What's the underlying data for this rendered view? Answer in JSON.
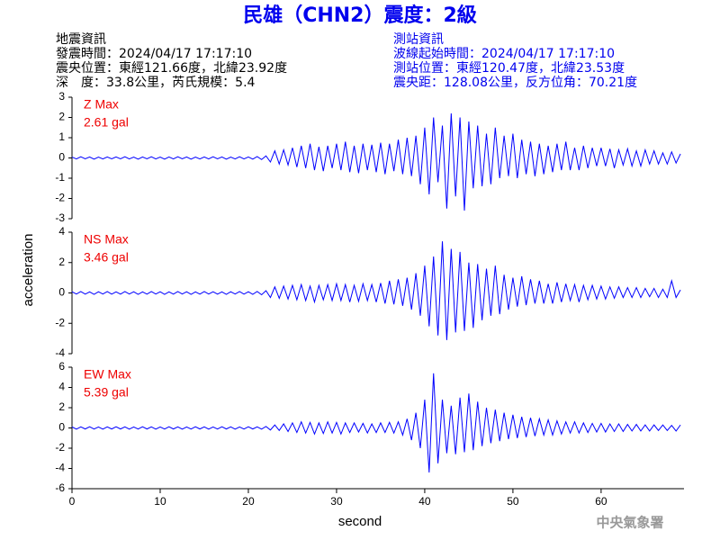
{
  "header": {
    "title": "民雄（CHN2）震度：2級",
    "left": [
      "地震資訊",
      "發震時間：2024/04/17 17:17:10",
      "震央位置：東經121.66度，北緯23.92度",
      "深　度：33.8公里，芮氏規模：5.4"
    ],
    "right": [
      "測站資訊",
      "波線起始時間：2024/04/17 17:17:10",
      "測站位置：東經120.47度，北緯23.53度",
      "震央距：128.08公里，反方位角：70.21度"
    ],
    "footer": "中央氣象署"
  },
  "chart_data": {
    "type": "line",
    "xlabel": "second",
    "ylabel": "acceleration",
    "xlim": [
      0,
      69.4
    ],
    "xticks": [
      0,
      10,
      20,
      30,
      40,
      50,
      60
    ],
    "x": [
      0,
      0.5,
      1,
      1.5,
      2,
      2.5,
      3,
      3.5,
      4,
      4.5,
      5,
      5.5,
      6,
      6.5,
      7,
      7.5,
      8,
      8.5,
      9,
      9.5,
      10,
      10.5,
      11,
      11.5,
      12,
      12.5,
      13,
      13.5,
      14,
      14.5,
      15,
      15.5,
      16,
      16.5,
      17,
      17.5,
      18,
      18.5,
      19,
      19.5,
      20,
      20.5,
      21,
      21.5,
      22,
      22.5,
      23,
      23.5,
      24,
      24.5,
      25,
      25.5,
      26,
      26.5,
      27,
      27.5,
      28,
      28.5,
      29,
      29.5,
      30,
      30.5,
      31,
      31.5,
      32,
      32.5,
      33,
      33.5,
      34,
      34.5,
      35,
      35.5,
      36,
      36.5,
      37,
      37.5,
      38,
      38.5,
      39,
      39.5,
      40,
      40.5,
      41,
      41.5,
      42,
      42.5,
      43,
      43.5,
      44,
      44.5,
      45,
      45.5,
      46,
      46.5,
      47,
      47.5,
      48,
      48.5,
      49,
      49.5,
      50,
      50.5,
      51,
      51.5,
      52,
      52.5,
      53,
      53.5,
      54,
      54.5,
      55,
      55.5,
      56,
      56.5,
      57,
      57.5,
      58,
      58.5,
      59,
      59.5,
      60,
      60.5,
      61,
      61.5,
      62,
      62.5,
      63,
      63.5,
      64,
      64.5,
      65,
      65.5,
      66,
      66.5,
      67,
      67.5,
      68,
      68.5,
      69
    ],
    "panels": [
      {
        "annotations": [
          "Z Max",
          "2.61 gal"
        ],
        "color": "#0000ff",
        "ylim": [
          -3,
          3
        ],
        "yticks": [
          -3,
          -2,
          -1,
          0,
          1,
          2,
          3
        ],
        "values": [
          0.04,
          -0.05,
          0.06,
          -0.04,
          0.05,
          -0.06,
          0.04,
          -0.05,
          0.05,
          -0.04,
          0.05,
          -0.04,
          0.06,
          -0.05,
          0.04,
          -0.06,
          0.05,
          -0.04,
          0.06,
          -0.05,
          0.04,
          -0.06,
          0.05,
          -0.05,
          0.06,
          -0.04,
          0.05,
          -0.06,
          0.04,
          -0.05,
          0.05,
          -0.05,
          0.06,
          -0.04,
          0.05,
          -0.06,
          0.04,
          -0.05,
          0.06,
          -0.05,
          0.05,
          -0.06,
          0.07,
          -0.08,
          0.1,
          -0.2,
          0.35,
          -0.3,
          0.4,
          -0.35,
          0.5,
          -0.45,
          0.6,
          -0.5,
          0.7,
          -0.6,
          0.55,
          -0.65,
          0.6,
          -0.5,
          0.7,
          -0.6,
          0.8,
          -0.7,
          0.6,
          -0.75,
          0.7,
          -0.6,
          0.65,
          -0.7,
          0.75,
          -0.8,
          0.7,
          -0.65,
          0.9,
          -0.8,
          1.0,
          -0.9,
          1.1,
          -1.3,
          1.5,
          -1.8,
          2.0,
          -1.2,
          1.6,
          -2.5,
          2.2,
          -1.9,
          2.0,
          -2.6,
          1.8,
          -1.5,
          1.6,
          -1.4,
          1.2,
          -1.3,
          1.5,
          -1.0,
          1.1,
          -0.9,
          1.2,
          -1.0,
          0.9,
          -0.8,
          0.8,
          -0.9,
          0.7,
          -0.8,
          0.6,
          -0.7,
          0.7,
          -0.6,
          0.8,
          -0.6,
          0.5,
          -0.6,
          0.6,
          -0.5,
          0.5,
          -0.4,
          0.5,
          -0.4,
          0.45,
          -0.5,
          0.4,
          -0.35,
          0.45,
          -0.4,
          0.35,
          -0.4,
          0.4,
          -0.3,
          0.35,
          -0.3,
          0.25,
          -0.3,
          0.3,
          -0.25,
          0.2
        ]
      },
      {
        "annotations": [
          "NS Max",
          "3.46 gal"
        ],
        "color": "#0000ff",
        "ylim": [
          -4,
          4
        ],
        "yticks": [
          -4,
          -2,
          0,
          2,
          4
        ],
        "values": [
          0.08,
          -0.07,
          0.09,
          -0.08,
          0.07,
          -0.09,
          0.08,
          -0.07,
          0.09,
          -0.08,
          0.07,
          -0.08,
          0.09,
          -0.07,
          0.08,
          -0.09,
          0.07,
          -0.08,
          0.09,
          -0.07,
          0.08,
          -0.09,
          0.07,
          -0.08,
          0.09,
          -0.07,
          0.08,
          -0.09,
          0.07,
          -0.08,
          0.09,
          -0.07,
          0.08,
          -0.08,
          0.07,
          -0.09,
          0.08,
          -0.07,
          0.09,
          -0.08,
          0.08,
          -0.09,
          0.1,
          -0.12,
          0.15,
          -0.3,
          0.4,
          -0.35,
          0.45,
          -0.4,
          0.5,
          -0.45,
          0.55,
          -0.5,
          0.45,
          -0.6,
          0.5,
          -0.45,
          0.55,
          -0.5,
          0.6,
          -0.5,
          0.55,
          -0.6,
          0.5,
          -0.55,
          0.6,
          -0.5,
          0.55,
          -0.6,
          0.65,
          -0.7,
          0.8,
          -0.75,
          0.9,
          -0.85,
          1.0,
          -1.1,
          1.3,
          -1.5,
          1.8,
          -2.2,
          2.4,
          -2.8,
          3.4,
          -3.1,
          2.9,
          -2.6,
          2.7,
          -2.5,
          2.0,
          -2.3,
          1.9,
          -1.8,
          1.6,
          -1.5,
          1.8,
          -1.4,
          1.2,
          -1.1,
          1.0,
          -0.9,
          1.1,
          -0.8,
          0.9,
          -0.7,
          0.8,
          -0.7,
          0.6,
          -0.7,
          0.7,
          -0.6,
          0.6,
          -0.5,
          0.55,
          -0.6,
          0.5,
          -0.45,
          0.5,
          -0.4,
          0.45,
          -0.4,
          0.4,
          -0.35,
          0.4,
          -0.3,
          0.35,
          -0.3,
          0.35,
          -0.3,
          0.3,
          -0.25,
          0.3,
          -0.3,
          0.25,
          -0.3,
          0.8,
          -0.3,
          0.2
        ]
      },
      {
        "annotations": [
          "EW Max",
          "5.39 gal"
        ],
        "color": "#0000ff",
        "ylim": [
          -6,
          6
        ],
        "yticks": [
          -6,
          -4,
          -2,
          0,
          2,
          4,
          6
        ],
        "values": [
          0.1,
          -0.12,
          0.11,
          -0.1,
          0.12,
          -0.11,
          0.1,
          -0.12,
          0.11,
          -0.1,
          0.12,
          -0.1,
          0.11,
          -0.12,
          0.1,
          -0.11,
          0.12,
          -0.1,
          0.11,
          -0.12,
          0.1,
          -0.11,
          0.12,
          -0.1,
          0.11,
          -0.12,
          0.1,
          -0.11,
          0.12,
          -0.1,
          0.11,
          -0.12,
          0.1,
          -0.11,
          0.12,
          -0.1,
          0.11,
          -0.12,
          0.1,
          -0.11,
          0.12,
          -0.1,
          0.11,
          -0.12,
          0.15,
          -0.2,
          0.3,
          -0.25,
          0.4,
          -0.35,
          0.5,
          -0.45,
          0.6,
          -0.5,
          0.55,
          -0.6,
          0.5,
          -0.55,
          0.6,
          -0.5,
          0.55,
          -0.6,
          0.5,
          -0.45,
          0.5,
          -0.4,
          0.45,
          -0.5,
          0.4,
          -0.45,
          0.5,
          -0.45,
          0.55,
          -0.5,
          0.6,
          -0.7,
          0.9,
          -1.2,
          1.5,
          -2.0,
          2.8,
          -4.4,
          5.4,
          -3.5,
          2.8,
          -2.5,
          2.2,
          -2.6,
          3.0,
          -2.4,
          3.4,
          -2.2,
          2.6,
          -1.8,
          2.0,
          -1.5,
          1.8,
          -1.3,
          1.5,
          -1.1,
          1.3,
          -1.0,
          1.1,
          -0.9,
          1.0,
          -0.8,
          0.9,
          -0.7,
          0.8,
          -0.7,
          0.7,
          -0.6,
          0.6,
          -0.5,
          0.6,
          -0.5,
          0.5,
          -0.45,
          0.45,
          -0.4,
          0.45,
          -0.4,
          0.4,
          -0.35,
          0.4,
          -0.35,
          0.35,
          -0.3,
          0.35,
          -0.3,
          0.3,
          -0.3,
          0.3,
          -0.25,
          0.3,
          -0.25,
          0.25,
          -0.3,
          0.3
        ]
      }
    ]
  }
}
